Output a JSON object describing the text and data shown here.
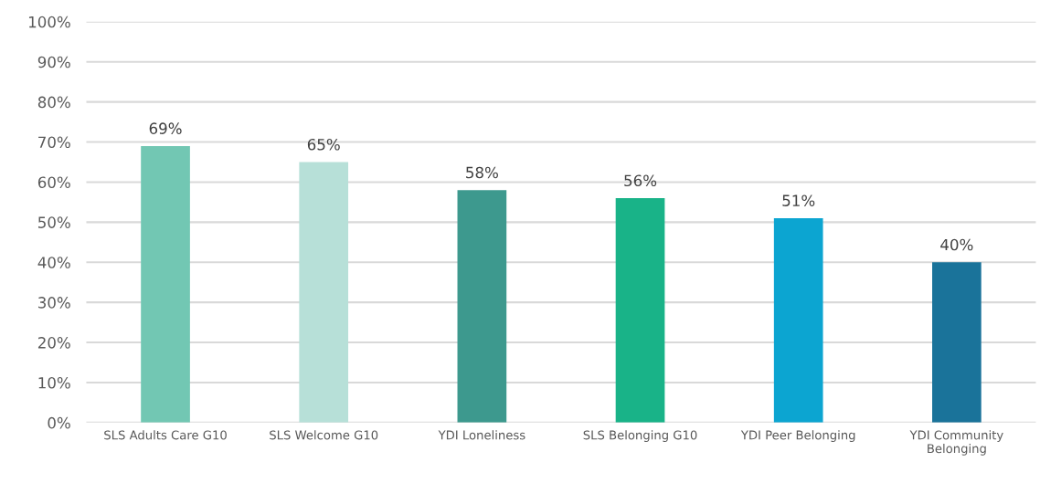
{
  "chart_data": {
    "type": "bar",
    "categories": [
      "SLS Adults Care G10",
      "SLS Welcome G10",
      "YDI Loneliness",
      "SLS Belonging G10",
      "YDI Peer Belonging",
      "YDI Community\nBelonging"
    ],
    "values": [
      69,
      65,
      58,
      56,
      51,
      40
    ],
    "colors": [
      "#72c7b3",
      "#b7e0d8",
      "#3d998e",
      "#19b388",
      "#0ca5d1",
      "#1a739a"
    ],
    "value_labels": [
      "69%",
      "65%",
      "58%",
      "56%",
      "51%",
      "40%"
    ],
    "ylim": [
      0,
      100
    ],
    "yticks": [
      {
        "value": 0,
        "label": "0%"
      },
      {
        "value": 10,
        "label": "10%"
      },
      {
        "value": 20,
        "label": "20%"
      },
      {
        "value": 30,
        "label": "30%"
      },
      {
        "value": 40,
        "label": "40%"
      },
      {
        "value": 50,
        "label": "50%"
      },
      {
        "value": 60,
        "label": "60%"
      },
      {
        "value": 70,
        "label": "70%"
      },
      {
        "value": 80,
        "label": "80%"
      },
      {
        "value": 90,
        "label": "90%"
      },
      {
        "value": 100,
        "label": "100%"
      }
    ],
    "grid": "y",
    "legend": false
  }
}
